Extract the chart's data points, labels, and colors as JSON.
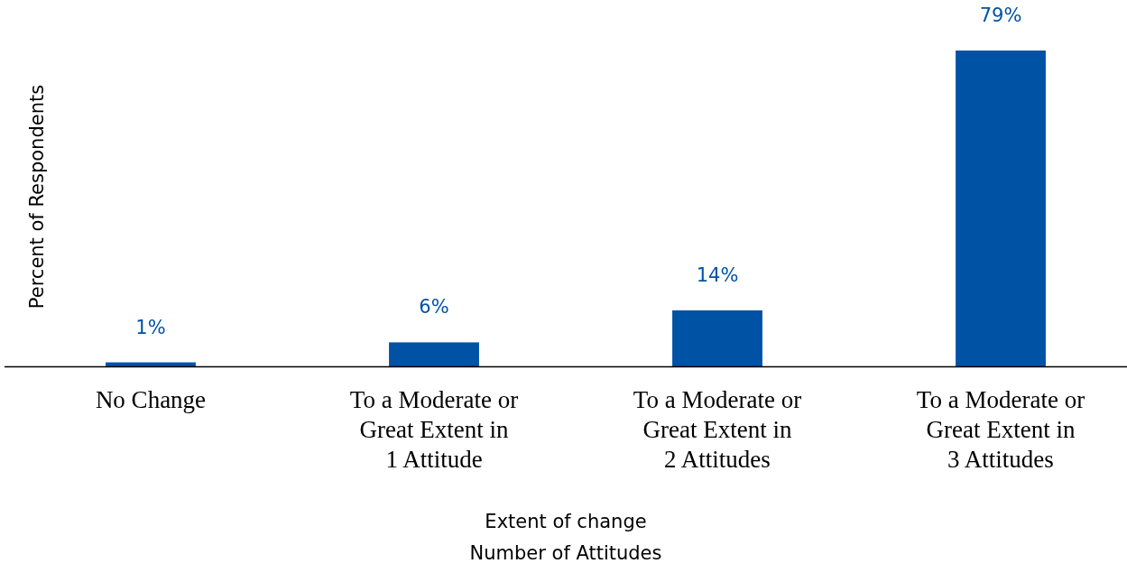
{
  "chart_data": {
    "type": "bar",
    "categories": [
      "No Change",
      "To a Moderate or\nGreat Extent in\n1 Attitude",
      "To a Moderate or\nGreat Extent in\n2 Attitudes",
      "To a Moderate or\nGreat Extent in\n3 Attitudes"
    ],
    "values": [
      1,
      6,
      14,
      79
    ],
    "value_labels": [
      "1%",
      "6%",
      "14%",
      "79%"
    ],
    "color": "#0052a5",
    "xlabel": "Extent of change\nNumber of Attitudes",
    "ylabel": "Percent of Respondents"
  }
}
